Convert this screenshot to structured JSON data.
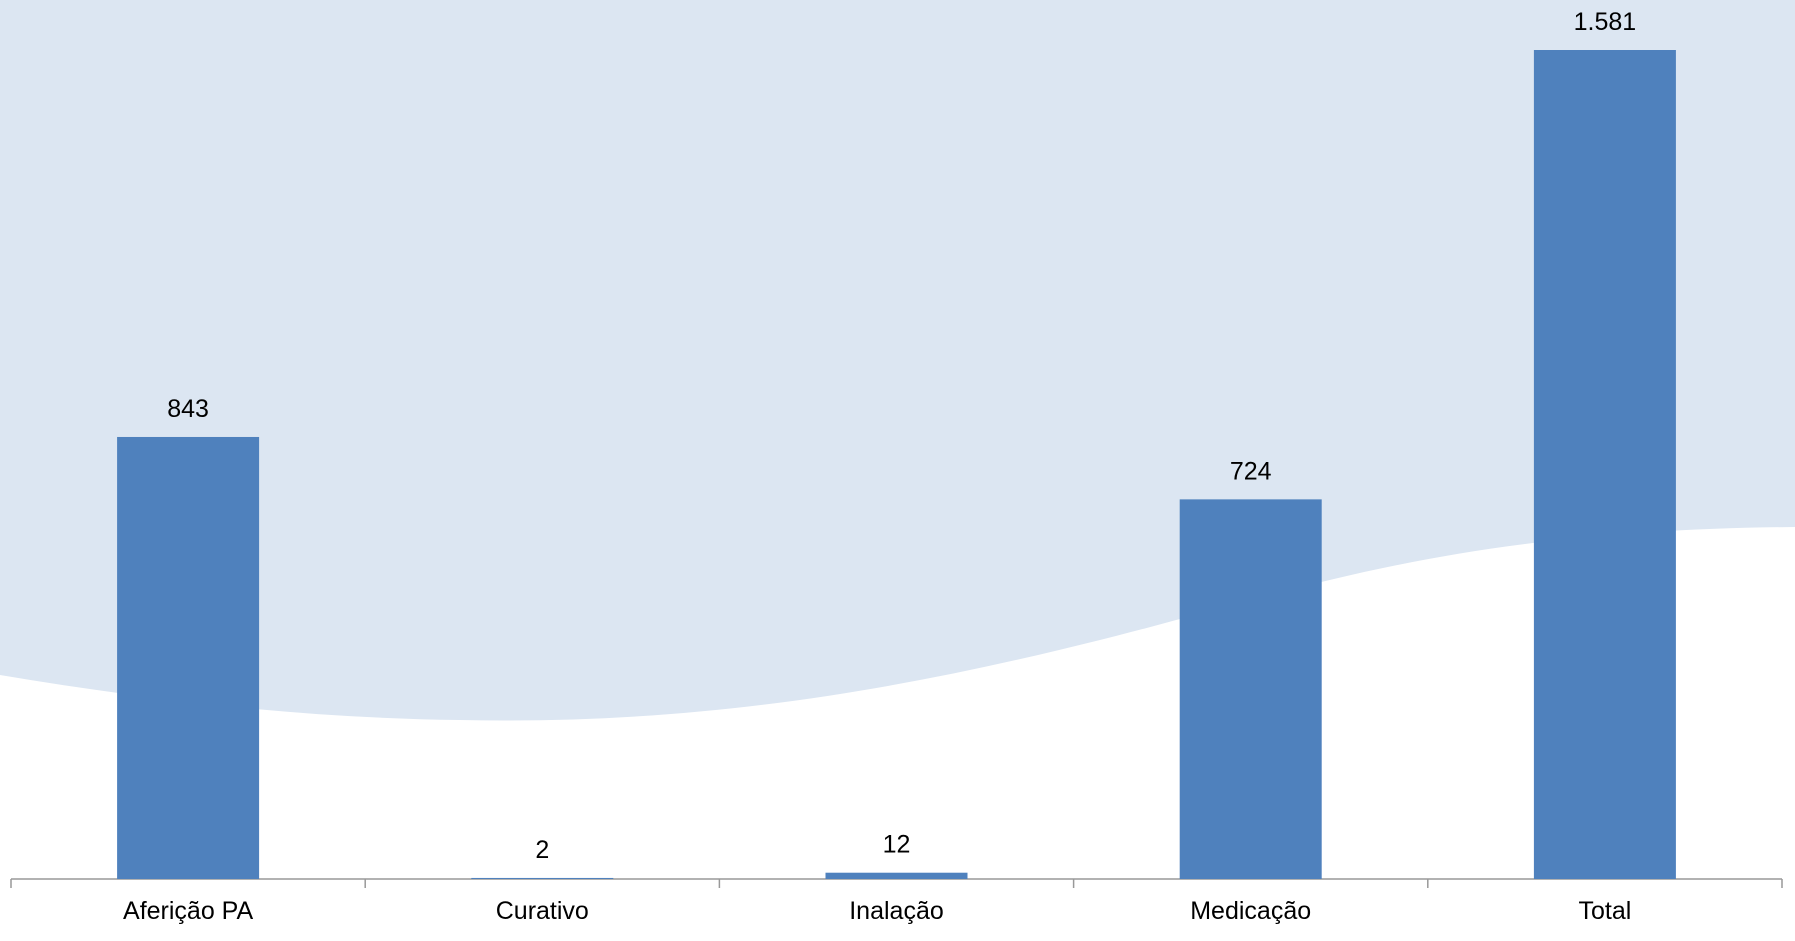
{
  "chart_data": {
    "type": "bar",
    "categories": [
      "Aferição PA",
      "Curativo",
      "Inalação",
      "Medicação",
      "Total"
    ],
    "values": [
      843,
      2,
      12,
      724,
      1581
    ],
    "value_labels": [
      "843",
      "2",
      "12",
      "724",
      "1.581"
    ],
    "color": "#4f81bd"
  }
}
